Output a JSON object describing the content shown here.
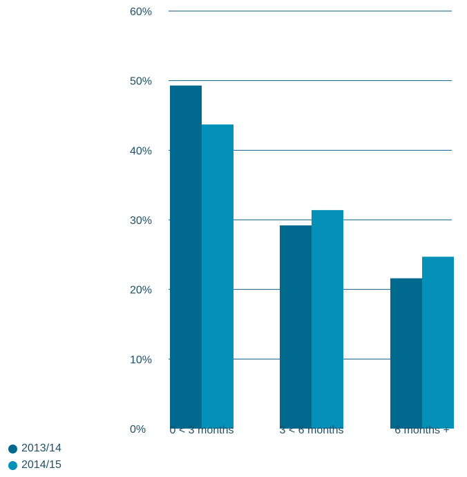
{
  "chart_data": {
    "type": "bar",
    "categories": [
      "0 < 3 months",
      "3 < 6 months",
      "6 months +"
    ],
    "series": [
      {
        "name": "2013/14",
        "values": [
          49.3,
          29.2,
          21.6
        ]
      },
      {
        "name": "2014/15",
        "values": [
          43.7,
          31.4,
          24.7
        ]
      }
    ],
    "yticks": [
      "0%",
      "10%",
      "20%",
      "30%",
      "40%",
      "50%",
      "60%"
    ],
    "ylim": [
      0,
      60
    ],
    "colors": [
      "#01698d",
      "#0491b8"
    ],
    "grid": true,
    "legend_position": "bottom-left"
  }
}
